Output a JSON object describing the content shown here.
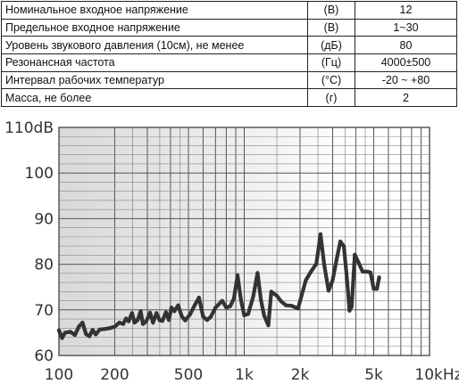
{
  "spec_table": {
    "rows": [
      {
        "param": "Номинальное входное напряжение",
        "unit": "(В)",
        "value": "12"
      },
      {
        "param": "Предельное входное напряжение",
        "unit": "(В)",
        "value": "1~30"
      },
      {
        "param": "Уровень звукового давления (10см), не менее",
        "unit": "(дБ)",
        "value": "80"
      },
      {
        "param": "Резонансная частота",
        "unit": "(Гц)",
        "value": "4000±500"
      },
      {
        "param": "Интервал рабочих температур",
        "unit": "(°C)",
        "value": "-20 ~ +80"
      },
      {
        "param": "Масса, не более",
        "unit": "(г)",
        "value": "2"
      }
    ]
  },
  "chart_data": {
    "type": "line",
    "x_scale": "log",
    "xlim": [
      100,
      10000
    ],
    "ylim": [
      60,
      110
    ],
    "grid": true,
    "x_ticks": [
      {
        "value": 100,
        "label": "100"
      },
      {
        "value": 200,
        "label": "200"
      },
      {
        "value": 500,
        "label": "500"
      },
      {
        "value": 1000,
        "label": "1k"
      },
      {
        "value": 2000,
        "label": "2k"
      },
      {
        "value": 5000,
        "label": "5k"
      },
      {
        "value": 10000,
        "label": "10kHz"
      }
    ],
    "y_ticks": [
      {
        "value": 110,
        "label": "110dB"
      },
      {
        "value": 100,
        "label": "100"
      },
      {
        "value": 90,
        "label": "90"
      },
      {
        "value": 80,
        "label": "80"
      },
      {
        "value": 70,
        "label": "70"
      },
      {
        "value": 60,
        "label": "60"
      }
    ],
    "series": [
      {
        "color": "#333333",
        "points": [
          [
            100,
            65.5
          ],
          [
            104,
            63.8
          ],
          [
            108,
            65
          ],
          [
            115,
            65.2
          ],
          [
            122,
            64.5
          ],
          [
            128,
            66.3
          ],
          [
            134,
            67.2
          ],
          [
            140,
            64.7
          ],
          [
            146,
            64.2
          ],
          [
            152,
            65.6
          ],
          [
            158,
            64.6
          ],
          [
            166,
            65.7
          ],
          [
            176,
            65.8
          ],
          [
            188,
            66
          ],
          [
            200,
            66.3
          ],
          [
            212,
            67.2
          ],
          [
            222,
            66.9
          ],
          [
            230,
            68.1
          ],
          [
            238,
            67.5
          ],
          [
            248,
            69.3
          ],
          [
            256,
            67.2
          ],
          [
            266,
            67.8
          ],
          [
            276,
            69.7
          ],
          [
            284,
            66.9
          ],
          [
            296,
            67.5
          ],
          [
            310,
            69.4
          ],
          [
            322,
            67.2
          ],
          [
            336,
            69.3
          ],
          [
            350,
            67.7
          ],
          [
            362,
            67.6
          ],
          [
            378,
            69.5
          ],
          [
            392,
            67.8
          ],
          [
            405,
            70.5
          ],
          [
            420,
            69.7
          ],
          [
            440,
            71
          ],
          [
            460,
            68.6
          ],
          [
            480,
            67.7
          ],
          [
            510,
            69
          ],
          [
            540,
            71
          ],
          [
            570,
            72.7
          ],
          [
            600,
            68.5
          ],
          [
            630,
            67.8
          ],
          [
            660,
            68.5
          ],
          [
            700,
            70.5
          ],
          [
            760,
            72
          ],
          [
            800,
            70.5
          ],
          [
            840,
            70.8
          ],
          [
            880,
            72.5
          ],
          [
            920,
            77.6
          ],
          [
            960,
            72.2
          ],
          [
            1000,
            68.8
          ],
          [
            1050,
            69.1
          ],
          [
            1120,
            73
          ],
          [
            1180,
            78.1
          ],
          [
            1230,
            72.2
          ],
          [
            1280,
            68.8
          ],
          [
            1350,
            66.6
          ],
          [
            1400,
            74
          ],
          [
            1500,
            73.1
          ],
          [
            1580,
            71.9
          ],
          [
            1680,
            71
          ],
          [
            1800,
            70.9
          ],
          [
            1950,
            70.3
          ],
          [
            2150,
            76.5
          ],
          [
            2300,
            78.5
          ],
          [
            2450,
            80.1
          ],
          [
            2580,
            86.6
          ],
          [
            2700,
            80
          ],
          [
            2850,
            74.2
          ],
          [
            3000,
            76.5
          ],
          [
            3150,
            81
          ],
          [
            3300,
            85
          ],
          [
            3450,
            83.9
          ],
          [
            3600,
            76
          ],
          [
            3700,
            69.8
          ],
          [
            3800,
            70.7
          ],
          [
            3950,
            82.1
          ],
          [
            4150,
            80.3
          ],
          [
            4350,
            78.4
          ],
          [
            4600,
            78.4
          ],
          [
            4800,
            78.2
          ],
          [
            5000,
            74.6
          ],
          [
            5200,
            74.6
          ],
          [
            5350,
            77.1
          ]
        ]
      }
    ]
  }
}
